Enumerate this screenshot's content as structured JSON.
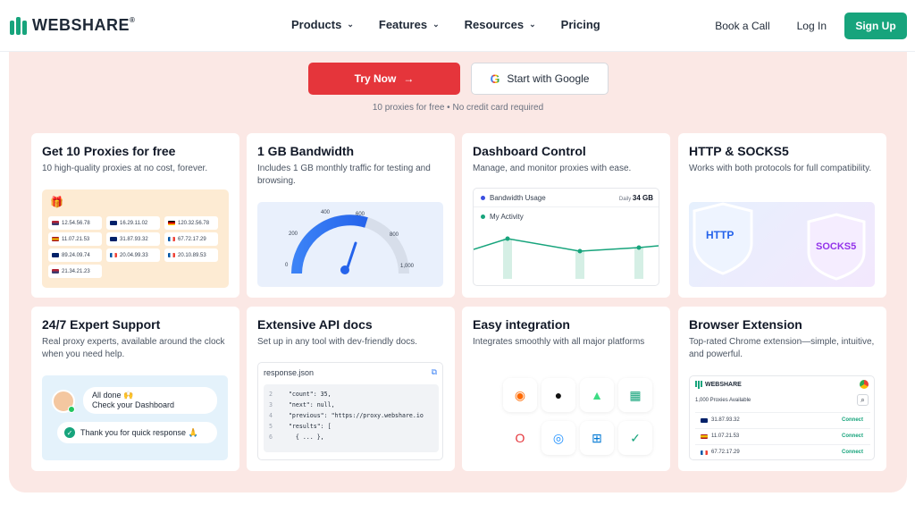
{
  "nav": {
    "brand": "WEBSHARE",
    "brand_mark": "®",
    "menu": [
      {
        "label": "Products",
        "has_dropdown": true
      },
      {
        "label": "Features",
        "has_dropdown": true
      },
      {
        "label": "Resources",
        "has_dropdown": true
      },
      {
        "label": "Pricing",
        "has_dropdown": false
      }
    ],
    "book_call": "Book a Call",
    "login": "Log In",
    "signup": "Sign Up"
  },
  "cta": {
    "try_now": "Try Now",
    "try_arrow": "→",
    "google": "Start with Google",
    "note": "10 proxies for free • No credit card required"
  },
  "colors": {
    "brand_green": "#17a47c",
    "cta_red": "#e5353b",
    "panel_bg": "#fbe8e5"
  },
  "cards": {
    "proxies": {
      "title": "Get 10 Proxies for free",
      "desc": "10 high-quality proxies at no cost, forever.",
      "ips": [
        {
          "ip": "12.54.56.78",
          "flag": "us"
        },
        {
          "ip": "16.29.11.02",
          "flag": "uk"
        },
        {
          "ip": "120.32.56.78",
          "flag": "de"
        },
        {
          "ip": "11.07.21.53",
          "flag": "es"
        },
        {
          "ip": "31.87.93.32",
          "flag": "uk"
        },
        {
          "ip": "67.72.17.29",
          "flag": "fr"
        },
        {
          "ip": "89.24.09.74",
          "flag": "uk"
        },
        {
          "ip": "20.04.99.33",
          "flag": "fr"
        },
        {
          "ip": "20.10.89.53",
          "flag": "fr"
        },
        {
          "ip": "21.34.21.23",
          "flag": "us"
        }
      ]
    },
    "bandwidth": {
      "title": "1 GB Bandwidth",
      "desc": "Includes 1 GB monthly traffic for testing and browsing.",
      "gauge_labels": [
        "0",
        "200",
        "400",
        "600",
        "800",
        "1,000"
      ],
      "needle_value": 600
    },
    "dashboard": {
      "title": "Dashboard Control",
      "desc": "Manage, and monitor proxies with ease.",
      "bandwidth_label": "Bandwidth Usage",
      "daily_label": "Daily",
      "daily_value": "34 GB",
      "activity_label": "My Activity"
    },
    "http": {
      "title": "HTTP & SOCKS5",
      "desc": "Works with both protocols for full compatibility.",
      "badge1": "HTTP",
      "badge2": "SOCKS5"
    },
    "support": {
      "title": "24/7 Expert Support",
      "desc": "Real proxy experts, available around the clock when you need help.",
      "msg1_line1": "All done 🙌",
      "msg1_line2": "Check your Dashboard",
      "msg2": "Thank you for quick response 🙏"
    },
    "api": {
      "title": "Extensive API docs",
      "desc": "Set up in any tool with dev-friendly docs.",
      "filename": "response.json",
      "lines": [
        {
          "n": "1",
          "t": "{"
        },
        {
          "n": "2",
          "t": "  \"count\": 35,"
        },
        {
          "n": "3",
          "t": "  \"next\": null,"
        },
        {
          "n": "4",
          "t": "  \"previous\": \"https://proxy.webshare.io"
        },
        {
          "n": "5",
          "t": "  \"results\": ["
        },
        {
          "n": "6",
          "t": "    { ... },"
        }
      ]
    },
    "integration": {
      "title": "Easy integration",
      "desc": "Integrates smoothly with all major platforms",
      "icons": [
        "firefox-icon",
        "apple-icon",
        "android-icon",
        "spreadsheet-icon",
        "opera-icon",
        "safari-icon",
        "windows-icon",
        "check-circle-icon"
      ]
    },
    "extension": {
      "title": "Browser Extension",
      "desc": "Top-rated Chrome extension—simple, intuitive, and powerful.",
      "brand": "WEBSHARE",
      "available": "1,000 Proxies Available",
      "rows": [
        {
          "ip": "31.87.93.32",
          "flag": "uk",
          "action": "Connect"
        },
        {
          "ip": "11.07.21.53",
          "flag": "es",
          "action": "Connect"
        },
        {
          "ip": "67.72.17.29",
          "flag": "fr",
          "action": "Connect"
        }
      ]
    }
  }
}
